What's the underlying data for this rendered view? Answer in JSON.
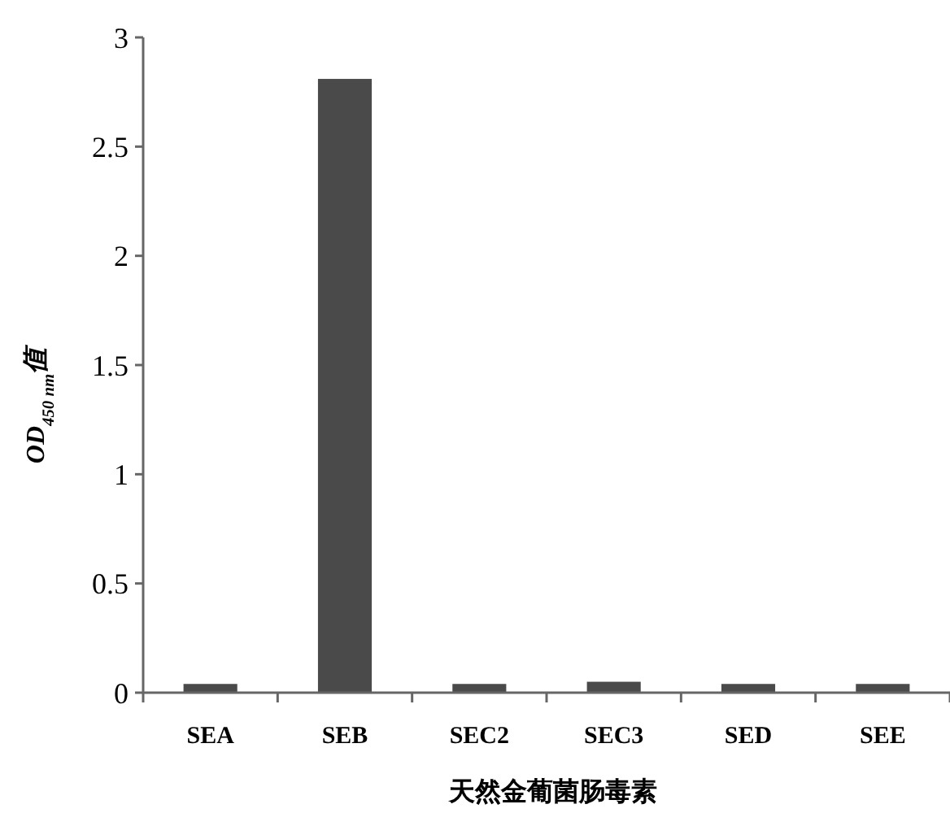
{
  "chart_data": {
    "type": "bar",
    "xlabel": "天然金葡菌肠毒素",
    "ylabel": "OD$_{450 nm}$值",
    "categories": [
      "SEA",
      "SEB",
      "SEC2",
      "SEC3",
      "SED",
      "SEE"
    ],
    "values": [
      0.04,
      2.81,
      0.04,
      0.05,
      0.04,
      0.04
    ],
    "color": "#4a4a4a",
    "ylim": [
      0,
      3
    ],
    "yticks": [
      0,
      0.5,
      1,
      1.5,
      2,
      2.5,
      3
    ],
    "grid": false
  }
}
